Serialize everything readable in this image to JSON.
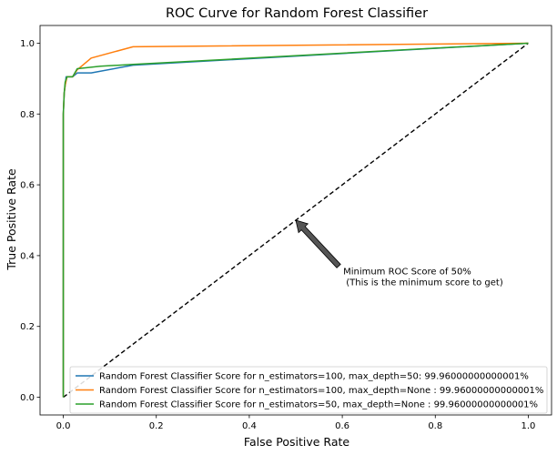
{
  "chart_data": {
    "type": "line",
    "title": "ROC Curve for Random Forest Classifier",
    "xlabel": "False Positive Rate",
    "ylabel": "True Positive Rate",
    "xlim": [
      -0.05,
      1.05
    ],
    "ylim": [
      -0.05,
      1.05
    ],
    "xticks": [
      0.0,
      0.2,
      0.4,
      0.6,
      0.8,
      1.0
    ],
    "yticks": [
      0.0,
      0.2,
      0.4,
      0.6,
      0.8,
      1.0
    ],
    "xtick_labels": [
      "0.0",
      "0.2",
      "0.4",
      "0.6",
      "0.8",
      "1.0"
    ],
    "ytick_labels": [
      "0.0",
      "0.2",
      "0.4",
      "0.6",
      "0.8",
      "1.0"
    ],
    "grid": false,
    "legend_position": "lower-right",
    "series": [
      {
        "name": "Random Forest Classifier Score for n_estimators=100, max_depth=50: 99.96000000000001%",
        "color": "#1f77b4",
        "x": [
          0.0,
          0.0,
          0.002,
          0.004,
          0.006,
          0.01,
          0.02,
          0.03,
          0.06,
          0.15,
          1.0
        ],
        "y": [
          0.0,
          0.8,
          0.86,
          0.88,
          0.905,
          0.905,
          0.905,
          0.916,
          0.916,
          0.938,
          1.0
        ]
      },
      {
        "name": "Random Forest Classifier Score for n_estimators=100, max_depth=None : 99.96000000000001%",
        "color": "#ff7f0e",
        "x": [
          0.0,
          0.0,
          0.002,
          0.004,
          0.008,
          0.02,
          0.03,
          0.06,
          0.15,
          1.0
        ],
        "y": [
          0.0,
          0.8,
          0.86,
          0.88,
          0.905,
          0.905,
          0.925,
          0.958,
          0.99,
          1.0
        ]
      },
      {
        "name": "Random Forest Classifier Score for n_estimators=50, max_depth=None : 99.96000000000001%",
        "color": "#2ca02c",
        "x": [
          0.0,
          0.0,
          0.002,
          0.004,
          0.008,
          0.02,
          0.03,
          0.08,
          0.15,
          1.0
        ],
        "y": [
          0.0,
          0.8,
          0.86,
          0.89,
          0.905,
          0.905,
          0.928,
          0.935,
          0.94,
          1.0
        ]
      }
    ],
    "reference_line": {
      "x": [
        0.0,
        1.0
      ],
      "y": [
        0.0,
        1.0
      ],
      "color": "#000000",
      "style": "dashed"
    },
    "annotation": {
      "text_line1": "Minimum ROC Score of 50%",
      "text_line2": " (This is the minimum score to get)",
      "arrow_to": [
        0.5,
        0.5
      ],
      "text_at": [
        0.6,
        0.35
      ],
      "arrow_color": "#555555"
    }
  }
}
